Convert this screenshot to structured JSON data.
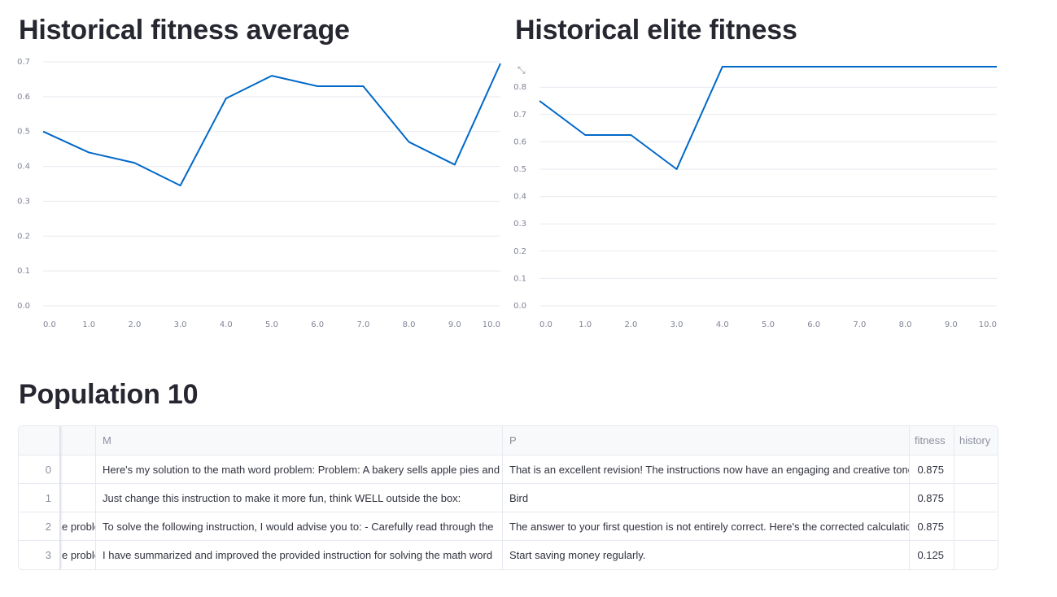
{
  "headings": {
    "avg": "Historical fitness average",
    "elite": "Historical elite fitness",
    "population": "Population 10"
  },
  "colors": {
    "series": "#0068c9"
  },
  "icons": {
    "expand": "expand-icon"
  },
  "chart_data": [
    {
      "type": "line",
      "title": "Historical fitness average",
      "x": [
        0,
        1,
        2,
        3,
        4,
        5,
        6,
        7,
        8,
        9,
        10
      ],
      "xticks": [
        "0.0",
        "1.0",
        "2.0",
        "3.0",
        "4.0",
        "5.0",
        "6.0",
        "7.0",
        "8.0",
        "9.0",
        "10.0"
      ],
      "values": [
        0.5,
        0.44,
        0.41,
        0.345,
        0.595,
        0.66,
        0.63,
        0.63,
        0.47,
        0.405,
        0.695
      ],
      "yticks": [
        "0.0",
        "0.1",
        "0.2",
        "0.3",
        "0.4",
        "0.5",
        "0.6",
        "0.7"
      ],
      "ylim": [
        0,
        0.7
      ],
      "xlim": [
        0,
        10
      ]
    },
    {
      "type": "line",
      "title": "Historical elite fitness",
      "x": [
        0,
        1,
        2,
        3,
        4,
        5,
        6,
        7,
        8,
        9,
        10
      ],
      "xticks": [
        "0.0",
        "1.0",
        "2.0",
        "3.0",
        "4.0",
        "5.0",
        "6.0",
        "7.0",
        "8.0",
        "9.0",
        "10.0"
      ],
      "values": [
        0.75,
        0.625,
        0.625,
        0.5,
        0.875,
        0.875,
        0.875,
        0.875,
        0.875,
        0.875,
        0.875
      ],
      "yticks": [
        "0.0",
        "0.1",
        "0.2",
        "0.3",
        "0.4",
        "0.5",
        "0.6",
        "0.7",
        "0.8"
      ],
      "ylim": [
        0,
        0.875
      ],
      "xlim": [
        0,
        10
      ]
    }
  ],
  "table": {
    "columns": [
      "",
      "",
      "M",
      "P",
      "fitness",
      "history"
    ],
    "rows": [
      {
        "index": "0",
        "frozen": "",
        "M": " Here's my solution to the math word problem: Problem: A bakery sells apple pies and",
        "P": "That is an excellent revision! The instructions now have an engaging and creative tone",
        "fitness": "0.875",
        "history": ""
      },
      {
        "index": "1",
        "frozen": "",
        "M": "Just change this instruction to make it more fun, think WELL outside the box:",
        "P": "Bird",
        "fitness": "0.875",
        "history": ""
      },
      {
        "index": "2",
        "frozen": "e proble",
        "M": " To solve the following instruction, I would advise you to:  - Carefully read through the",
        "P": "The answer to your first question is not entirely correct. Here's the corrected calculation",
        "fitness": "0.875",
        "history": ""
      },
      {
        "index": "3",
        "frozen": "e proble",
        "M": "I have summarized and improved the provided instruction for solving the math word",
        "P": "Start saving money regularly.",
        "fitness": "0.125",
        "history": ""
      }
    ]
  }
}
